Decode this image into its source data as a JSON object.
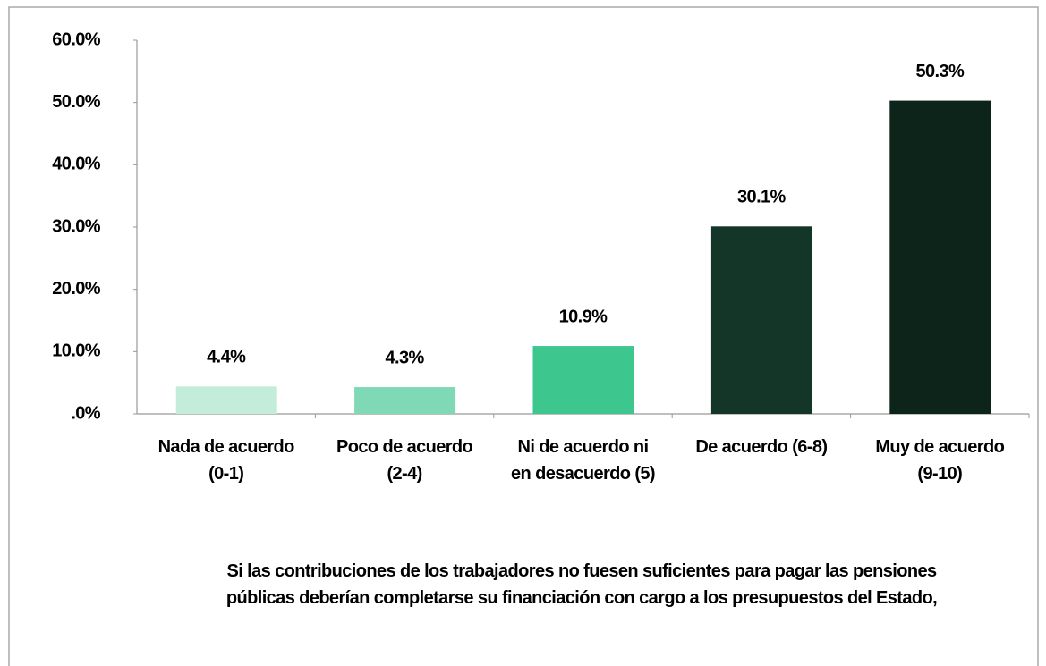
{
  "chart_data": {
    "type": "bar",
    "x_label": "Si las contribuciones  de los trabajadores no fuesen suficientes para pagar las pensiones públicas deberían completarse su financiación con cargo a los presupuestos del Estado,",
    "categories": [
      "Nada de acuerdo (0-1)",
      "Poco de acuerdo (2-4)",
      "Ni de acuerdo ni en desacuerdo (5)",
      "De acuerdo (6-8)",
      "Muy de acuerdo (9-10)"
    ],
    "values": [
      4.4,
      4.3,
      10.9,
      30.1,
      50.3
    ],
    "value_labels": [
      "4.4%",
      "4.3%",
      "10.9%",
      "30.1%",
      "50.3%"
    ],
    "colors": [
      "#c3ecda",
      "#7fd9b6",
      "#3ec68f",
      "#133629",
      "#0c241a"
    ],
    "ylim": [
      0,
      60
    ],
    "yticks": [
      {
        "value": 0,
        "label": ".0%"
      },
      {
        "value": 10,
        "label": "10.0%"
      },
      {
        "value": 20,
        "label": "20.0%"
      },
      {
        "value": 30,
        "label": "30.0%"
      },
      {
        "value": 40,
        "label": "40.0%"
      },
      {
        "value": 50,
        "label": "50.0%"
      },
      {
        "value": 60,
        "label": "60.0%"
      }
    ],
    "grid": false
  }
}
